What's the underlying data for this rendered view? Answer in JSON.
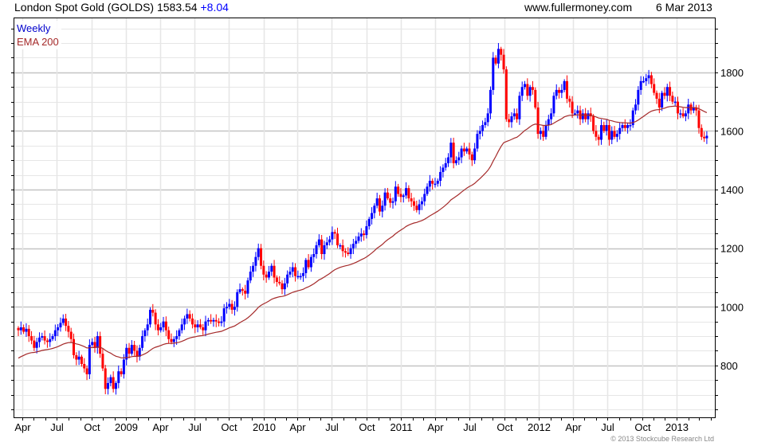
{
  "header": {
    "title": "London Spot Gold (GOLDS) 1583.54",
    "change": "+8.04",
    "site": "www.fullermoney.com",
    "date": "6 Mar 2013"
  },
  "legend": {
    "period": "Weekly",
    "ema": "EMA 200"
  },
  "footer": {
    "copyright": "© 2013 Stockcube Research Ltd"
  },
  "colors": {
    "up": "#0000ff",
    "down": "#ff0000",
    "ema": "#a52a2a",
    "grid": "#e6e6e6",
    "grid_major": "#c4c4c4"
  },
  "chart_data": {
    "type": "candlestick",
    "title": "London Spot Gold (GOLDS)",
    "interval": "weekly",
    "start_week": "2008-03-21",
    "ylim": [
      623,
      1987
    ],
    "yticks": [
      800,
      1000,
      1200,
      1400,
      1600,
      1800
    ],
    "xticks": [
      {
        "label": "Apr",
        "date": "2008-04-01"
      },
      {
        "label": "Jul",
        "date": "2008-07-01"
      },
      {
        "label": "Oct",
        "date": "2008-10-01"
      },
      {
        "label": "2009",
        "date": "2009-01-01"
      },
      {
        "label": "Apr",
        "date": "2009-04-01"
      },
      {
        "label": "Jul",
        "date": "2009-07-01"
      },
      {
        "label": "Oct",
        "date": "2009-10-01"
      },
      {
        "label": "2010",
        "date": "2010-01-01"
      },
      {
        "label": "Apr",
        "date": "2010-04-01"
      },
      {
        "label": "Jul",
        "date": "2010-07-01"
      },
      {
        "label": "Oct",
        "date": "2010-10-01"
      },
      {
        "label": "2011",
        "date": "2011-01-01"
      },
      {
        "label": "Apr",
        "date": "2011-04-01"
      },
      {
        "label": "Jul",
        "date": "2011-07-01"
      },
      {
        "label": "Oct",
        "date": "2011-10-01"
      },
      {
        "label": "2012",
        "date": "2012-01-01"
      },
      {
        "label": "Apr",
        "date": "2012-04-01"
      },
      {
        "label": "Jul",
        "date": "2012-07-01"
      },
      {
        "label": "Oct",
        "date": "2012-10-01"
      },
      {
        "label": "2013",
        "date": "2013-01-01"
      }
    ],
    "ema_period_weeks": 40,
    "ema_seed": 820,
    "closes": [
      920,
      930,
      915,
      925,
      900,
      885,
      860,
      880,
      895,
      900,
      885,
      880,
      890,
      900,
      920,
      930,
      945,
      960,
      935,
      915,
      890,
      835,
      820,
      830,
      805,
      790,
      770,
      870,
      880,
      860,
      900,
      840,
      790,
      720,
      740,
      760,
      720,
      740,
      780,
      770,
      820,
      860,
      840,
      870,
      850,
      830,
      860,
      900,
      920,
      940,
      990,
      980,
      940,
      920,
      930,
      950,
      920,
      890,
      880,
      890,
      900,
      920,
      940,
      960,
      975,
      960,
      940,
      930,
      940,
      930,
      920,
      950,
      955,
      950,
      955,
      950,
      945,
      950,
      995,
      1000,
      1010,
      990,
      1000,
      1050,
      1060,
      1055,
      1045,
      1090,
      1120,
      1140,
      1170,
      1200,
      1140,
      1110,
      1100,
      1120,
      1140,
      1100,
      1085,
      1080,
      1060,
      1080,
      1110,
      1120,
      1135,
      1105,
      1105,
      1105,
      1115,
      1160,
      1135,
      1170,
      1180,
      1210,
      1230,
      1180,
      1210,
      1220,
      1230,
      1255,
      1250,
      1210,
      1210,
      1190,
      1185,
      1180,
      1200,
      1215,
      1225,
      1240,
      1250,
      1245,
      1275,
      1300,
      1320,
      1345,
      1370,
      1325,
      1345,
      1390,
      1370,
      1355,
      1360,
      1410,
      1385,
      1375,
      1380,
      1405,
      1370,
      1360,
      1345,
      1330,
      1350,
      1360,
      1385,
      1410,
      1430,
      1420,
      1420,
      1430,
      1460,
      1475,
      1490,
      1510,
      1560,
      1490,
      1500,
      1510,
      1540,
      1530,
      1540,
      1520,
      1500,
      1540,
      1590,
      1600,
      1620,
      1630,
      1660,
      1740,
      1850,
      1830,
      1880,
      1860,
      1810,
      1640,
      1630,
      1650,
      1660,
      1640,
      1720,
      1750,
      1760,
      1720,
      1750,
      1740,
      1680,
      1590,
      1600,
      1580,
      1620,
      1640,
      1660,
      1720,
      1740,
      1730,
      1740,
      1770,
      1710,
      1700,
      1660,
      1660,
      1670,
      1640,
      1660,
      1640,
      1660,
      1650,
      1600,
      1580,
      1570,
      1620,
      1600,
      1620,
      1570,
      1600,
      1580,
      1590,
      1610,
      1620,
      1610,
      1620,
      1620,
      1670,
      1690,
      1740,
      1770,
      1770,
      1780,
      1790,
      1760,
      1730,
      1710,
      1680,
      1730,
      1720,
      1750,
      1720,
      1700,
      1700,
      1660,
      1660,
      1650,
      1660,
      1690,
      1670,
      1680,
      1670,
      1610,
      1580,
      1575,
      1583.54
    ]
  }
}
